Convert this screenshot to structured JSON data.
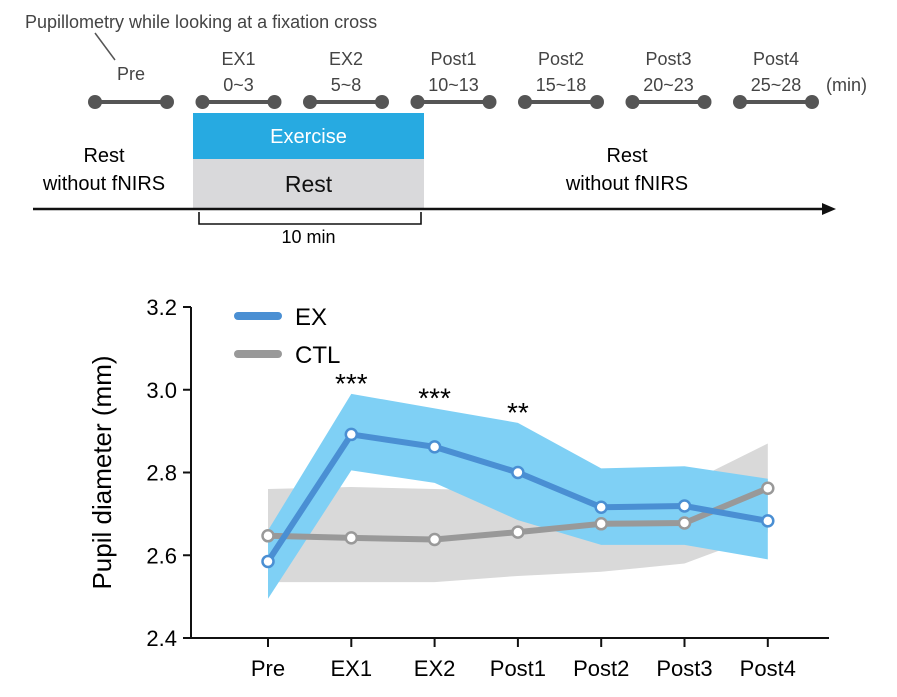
{
  "protocol": {
    "header": "Pupillometry while looking at a fixation cross",
    "unit": "(min)",
    "periods": [
      {
        "name": "Pre",
        "range": ""
      },
      {
        "name": "EX1",
        "range": "0~3"
      },
      {
        "name": "EX2",
        "range": "5~8"
      },
      {
        "name": "Post1",
        "range": "10~13"
      },
      {
        "name": "Post2",
        "range": "15~18"
      },
      {
        "name": "Post3",
        "range": "20~23"
      },
      {
        "name": "Post4",
        "range": "25~28"
      }
    ],
    "rest_left": [
      "Rest",
      "without fNIRS"
    ],
    "rest_right": [
      "Rest",
      "without fNIRS"
    ],
    "exercise_label": "Exercise",
    "rest_label": "Rest",
    "duration_label": "10 min",
    "colors": {
      "exercise": "#27aae1",
      "rest": "#d9d9db",
      "timeline": "#555555"
    }
  },
  "chart_data": {
    "type": "line",
    "categories": [
      "Pre",
      "EX1",
      "EX2",
      "Post1",
      "Post2",
      "Post3",
      "Post4"
    ],
    "ylabel": "Pupil diameter (mm)",
    "xlabel": "",
    "ylim": [
      2.4,
      3.2
    ],
    "yticks": [
      2.4,
      2.6,
      2.8,
      3.0,
      3.2
    ],
    "ytick_labels": [
      "2.4",
      "2.6",
      "2.8",
      "3.0",
      "3.2"
    ],
    "series": [
      {
        "name": "EX",
        "color": "#4a8fd3",
        "band_color": "#7fd0f5",
        "values": [
          2.585,
          2.892,
          2.862,
          2.8,
          2.716,
          2.719,
          2.683
        ],
        "upper": [
          2.66,
          2.99,
          2.955,
          2.92,
          2.81,
          2.815,
          2.785
        ],
        "lower": [
          2.495,
          2.805,
          2.775,
          2.685,
          2.625,
          2.625,
          2.59
        ]
      },
      {
        "name": "CTL",
        "color": "#999999",
        "band_color": "#d9d9d9",
        "values": [
          2.647,
          2.642,
          2.638,
          2.656,
          2.676,
          2.678,
          2.762
        ],
        "upper": [
          2.76,
          2.765,
          2.76,
          2.755,
          2.755,
          2.77,
          2.87
        ],
        "lower": [
          2.535,
          2.535,
          2.535,
          2.55,
          2.56,
          2.58,
          2.655
        ]
      }
    ],
    "significance": [
      {
        "category": "EX1",
        "label": "***"
      },
      {
        "category": "EX2",
        "label": "***"
      },
      {
        "category": "Post1",
        "label": "**"
      }
    ],
    "legend_position": "top-left"
  }
}
